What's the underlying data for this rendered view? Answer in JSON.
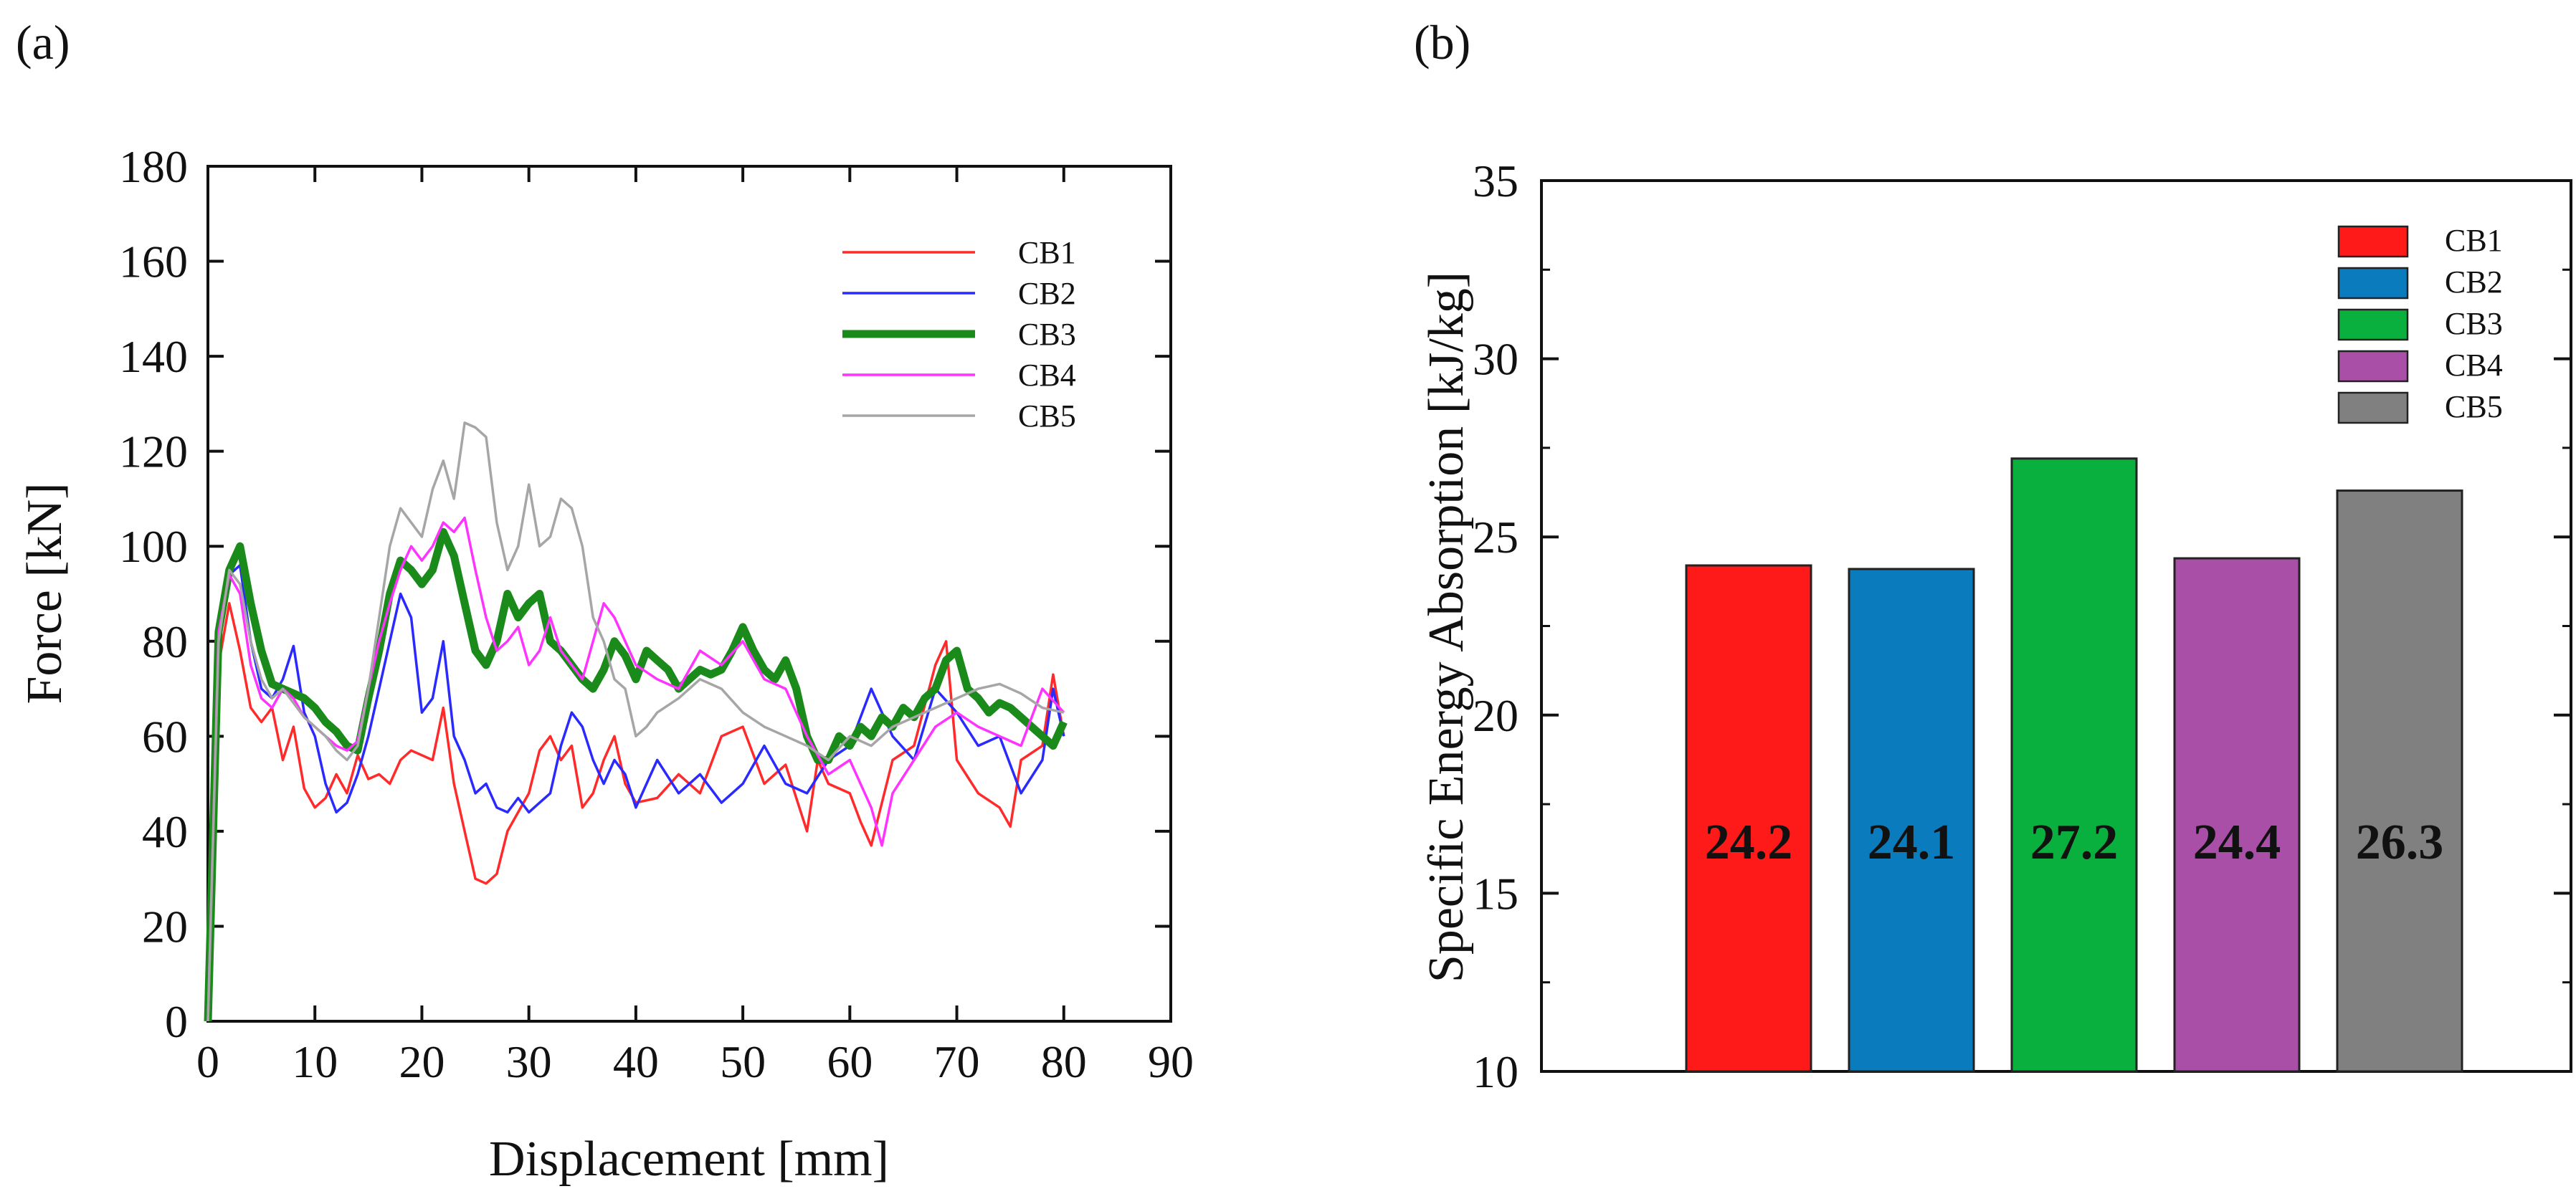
{
  "chart_data": [
    {
      "type": "line",
      "panel_label": "(a)",
      "xlabel": "Displacement [mm]",
      "ylabel": "Force [kN]",
      "xlim": [
        0,
        90
      ],
      "ylim": [
        0,
        180
      ],
      "xticks": [
        0,
        10,
        20,
        30,
        40,
        50,
        60,
        70,
        80,
        90
      ],
      "yticks": [
        0,
        20,
        40,
        60,
        80,
        100,
        120,
        140,
        160,
        180
      ],
      "grid": false,
      "legend": "top-right",
      "series": [
        {
          "name": "CB1",
          "color": "#ff2a2a",
          "x": [
            0,
            1,
            2,
            3,
            4,
            5,
            6,
            7,
            8,
            9,
            10,
            11,
            12,
            13,
            14,
            15,
            16,
            17,
            18,
            19,
            20,
            21,
            22,
            23,
            24,
            25,
            26,
            27,
            28,
            29,
            30,
            31,
            32,
            33,
            34,
            35,
            36,
            37,
            38,
            39,
            40,
            42,
            44,
            46,
            48,
            50,
            52,
            54,
            56,
            57,
            58,
            60,
            61,
            62,
            64,
            66,
            68,
            69,
            70,
            72,
            74,
            75,
            76,
            78,
            79,
            80
          ],
          "y": [
            0,
            75,
            88,
            78,
            66,
            63,
            66,
            55,
            62,
            49,
            45,
            47,
            52,
            48,
            56,
            51,
            52,
            50,
            55,
            57,
            56,
            55,
            66,
            50,
            40,
            30,
            29,
            31,
            40,
            44,
            48,
            57,
            60,
            55,
            58,
            45,
            48,
            55,
            60,
            50,
            46,
            47,
            52,
            48,
            60,
            62,
            50,
            54,
            40,
            55,
            50,
            48,
            42,
            37,
            55,
            58,
            75,
            80,
            55,
            48,
            45,
            41,
            55,
            58,
            73,
            60
          ]
        },
        {
          "name": "CB2",
          "color": "#2a2aff",
          "x": [
            0,
            1,
            2,
            3,
            4,
            5,
            6,
            7,
            8,
            9,
            10,
            11,
            12,
            13,
            14,
            15,
            16,
            17,
            18,
            19,
            20,
            21,
            22,
            23,
            24,
            25,
            26,
            27,
            28,
            29,
            30,
            31,
            32,
            33,
            34,
            35,
            36,
            37,
            38,
            39,
            40,
            42,
            44,
            46,
            48,
            50,
            52,
            54,
            56,
            58,
            60,
            62,
            64,
            66,
            68,
            70,
            72,
            74,
            76,
            78,
            79,
            80
          ],
          "y": [
            0,
            80,
            94,
            96,
            80,
            70,
            68,
            72,
            79,
            65,
            60,
            50,
            44,
            46,
            52,
            60,
            70,
            80,
            90,
            85,
            65,
            68,
            80,
            60,
            55,
            48,
            50,
            45,
            44,
            47,
            44,
            46,
            48,
            58,
            65,
            62,
            55,
            50,
            55,
            52,
            45,
            55,
            48,
            52,
            46,
            50,
            58,
            50,
            48,
            55,
            58,
            70,
            60,
            55,
            70,
            65,
            58,
            60,
            48,
            55,
            70,
            60
          ]
        },
        {
          "name": "CB3",
          "color": "#1a8a1a",
          "thick": true,
          "x": [
            0,
            1,
            2,
            3,
            4,
            5,
            6,
            7,
            8,
            9,
            10,
            11,
            12,
            13,
            14,
            15,
            16,
            17,
            18,
            19,
            20,
            21,
            22,
            23,
            24,
            25,
            26,
            27,
            28,
            29,
            30,
            31,
            32,
            33,
            34,
            35,
            36,
            37,
            38,
            39,
            40,
            41,
            42,
            43,
            44,
            45,
            46,
            47,
            48,
            49,
            50,
            51,
            52,
            53,
            54,
            55,
            56,
            57,
            58,
            59,
            60,
            61,
            62,
            63,
            64,
            65,
            66,
            67,
            68,
            69,
            70,
            71,
            72,
            73,
            74,
            75,
            76,
            77,
            78,
            79,
            80
          ],
          "y": [
            0,
            82,
            95,
            100,
            88,
            78,
            71,
            70,
            69,
            68,
            66,
            63,
            61,
            58,
            57,
            68,
            78,
            90,
            97,
            95,
            92,
            95,
            103,
            98,
            88,
            78,
            75,
            80,
            90,
            85,
            88,
            90,
            80,
            78,
            75,
            72,
            70,
            74,
            80,
            77,
            72,
            78,
            76,
            74,
            70,
            72,
            74,
            73,
            74,
            78,
            83,
            78,
            74,
            72,
            76,
            70,
            60,
            55,
            55,
            60,
            58,
            62,
            60,
            64,
            62,
            66,
            64,
            68,
            70,
            76,
            78,
            70,
            68,
            65,
            67,
            66,
            64,
            62,
            60,
            58,
            63
          ]
        },
        {
          "name": "CB4",
          "color": "#ff33ff",
          "x": [
            0,
            1,
            2,
            3,
            4,
            5,
            6,
            7,
            8,
            9,
            10,
            11,
            12,
            13,
            14,
            15,
            16,
            17,
            18,
            19,
            20,
            21,
            22,
            23,
            24,
            25,
            26,
            27,
            28,
            29,
            30,
            31,
            32,
            33,
            34,
            35,
            36,
            37,
            38,
            40,
            42,
            44,
            46,
            48,
            50,
            52,
            54,
            56,
            58,
            60,
            62,
            63,
            64,
            66,
            68,
            70,
            72,
            74,
            76,
            78,
            80
          ],
          "y": [
            0,
            82,
            94,
            90,
            75,
            68,
            66,
            70,
            68,
            64,
            62,
            60,
            58,
            57,
            59,
            70,
            80,
            88,
            95,
            100,
            97,
            100,
            105,
            103,
            106,
            95,
            85,
            78,
            80,
            83,
            75,
            78,
            85,
            78,
            75,
            72,
            80,
            88,
            85,
            75,
            72,
            70,
            78,
            75,
            80,
            72,
            70,
            60,
            52,
            55,
            45,
            37,
            48,
            55,
            62,
            65,
            62,
            60,
            58,
            70,
            65
          ]
        },
        {
          "name": "CB5",
          "color": "#a6a6a6",
          "x": [
            0,
            1,
            2,
            3,
            4,
            5,
            6,
            7,
            8,
            9,
            10,
            11,
            12,
            13,
            14,
            15,
            16,
            17,
            18,
            19,
            20,
            21,
            22,
            23,
            24,
            25,
            26,
            27,
            28,
            29,
            30,
            31,
            32,
            33,
            34,
            35,
            36,
            37,
            38,
            39,
            40,
            41,
            42,
            44,
            46,
            48,
            50,
            52,
            54,
            56,
            58,
            60,
            62,
            64,
            66,
            68,
            70,
            72,
            74,
            76,
            78,
            80
          ],
          "y": [
            0,
            80,
            95,
            92,
            80,
            72,
            68,
            70,
            67,
            64,
            62,
            60,
            57,
            55,
            58,
            70,
            85,
            100,
            108,
            105,
            102,
            112,
            118,
            110,
            126,
            125,
            123,
            105,
            95,
            100,
            113,
            100,
            102,
            110,
            108,
            100,
            85,
            80,
            72,
            70,
            60,
            62,
            65,
            68,
            72,
            70,
            65,
            62,
            60,
            58,
            55,
            60,
            58,
            62,
            64,
            66,
            68,
            70,
            71,
            69,
            66,
            65
          ]
        }
      ]
    },
    {
      "type": "bar",
      "panel_label": "(b)",
      "xlabel": "",
      "ylabel": "Specific Energy Absorption [kJ/kg]",
      "ylim": [
        10,
        35
      ],
      "yticks": [
        10,
        15,
        20,
        25,
        30,
        35
      ],
      "grid": false,
      "legend": "top-right",
      "categories": [
        "CB1",
        "CB2",
        "CB3",
        "CB4",
        "CB5"
      ],
      "values": [
        24.2,
        24.1,
        27.2,
        24.4,
        26.3
      ],
      "value_labels": [
        "24.2",
        "24.1",
        "27.2",
        "24.4",
        "26.3"
      ],
      "colors": [
        "#ff1a1a",
        "#0a7bbd",
        "#0ab03e",
        "#aa4fa8",
        "#808080"
      ]
    }
  ]
}
